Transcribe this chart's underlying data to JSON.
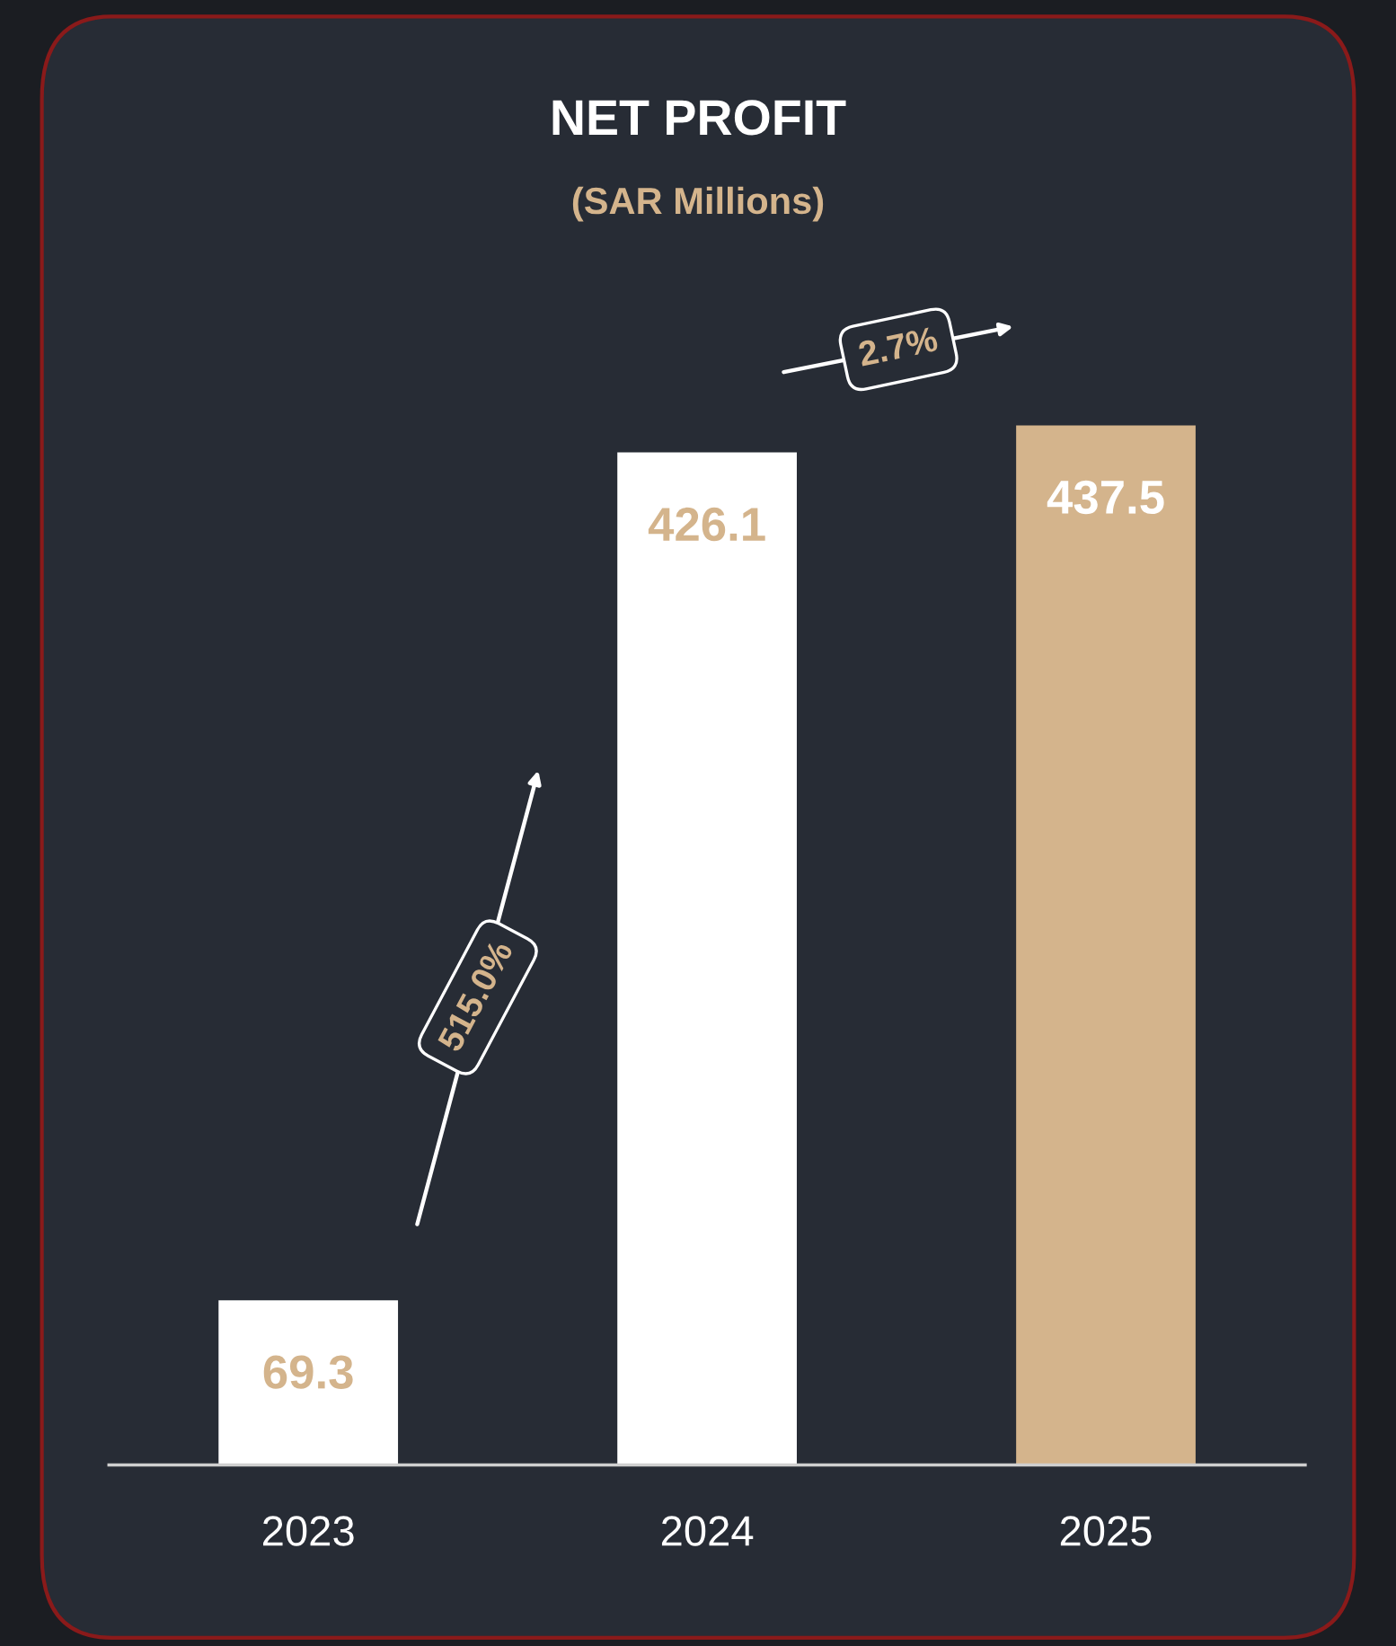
{
  "chart_data": {
    "type": "bar",
    "title": "NET PROFIT",
    "subtitle": "(SAR Millions)",
    "categories": [
      "2023",
      "2024",
      "2025"
    ],
    "values": [
      69.3,
      426.1,
      437.5
    ],
    "colors": [
      "#ffffff",
      "#ffffff",
      "#d4b48c"
    ],
    "data_labels": true,
    "tick_labels": "x",
    "annotations": [
      "515.0%",
      "2.7%"
    ]
  }
}
